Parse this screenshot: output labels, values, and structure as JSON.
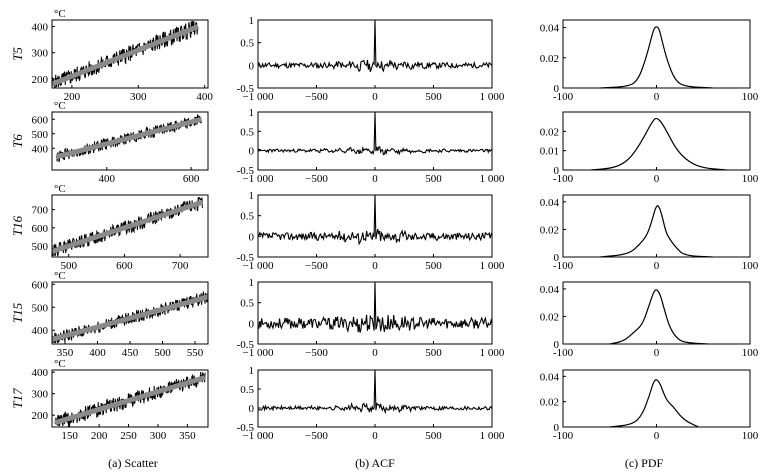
{
  "figure": {
    "unit": "°C",
    "captions": [
      "(a) Scatter",
      "(b) ACF",
      "(c) PDF"
    ]
  },
  "chart_data": [
    {
      "type": "scatter",
      "panel": "a",
      "row": "T5",
      "title": "",
      "xlabel": "",
      "ylabel": "T5",
      "unit": "°C",
      "xlim": [
        170,
        405
      ],
      "ylim": [
        165,
        425
      ],
      "xticks": [
        200,
        300,
        400
      ],
      "yticks": [
        200,
        300,
        400
      ],
      "trend": [
        [
          170,
          180
        ],
        [
          390,
          400
        ]
      ],
      "band": 32
    },
    {
      "type": "line",
      "panel": "b",
      "row": "T5",
      "title": "",
      "xlabel": "",
      "ylabel": "",
      "xlim": [
        -1000,
        1000
      ],
      "ylim": [
        -0.5,
        1
      ],
      "xticks": [
        -1000,
        -500,
        0,
        500,
        1000
      ],
      "xtick_labels": [
        "−1 000",
        "−500",
        "0",
        "500",
        "1 000"
      ],
      "yticks": [
        -0.5,
        0,
        0.5,
        1
      ],
      "peak": {
        "x": 0,
        "y": 1
      },
      "noise_amp": 0.06,
      "seed": 11
    },
    {
      "type": "line",
      "panel": "c",
      "row": "T5",
      "title": "",
      "xlabel": "",
      "ylabel": "",
      "xlim": [
        -100,
        100
      ],
      "ylim": [
        0,
        0.045
      ],
      "xticks": [
        -100,
        0,
        100
      ],
      "yticks": [
        0,
        0.02,
        0.04
      ],
      "ytick_labels": [
        "0",
        "0.02",
        "0.04"
      ],
      "x": [
        -60,
        -30,
        -20,
        -12,
        -6,
        -3,
        0,
        3,
        6,
        12,
        20,
        30,
        60
      ],
      "y": [
        0,
        0.001,
        0.005,
        0.018,
        0.032,
        0.039,
        0.041,
        0.039,
        0.031,
        0.017,
        0.005,
        0.001,
        0
      ]
    },
    {
      "type": "scatter",
      "panel": "a",
      "row": "T6",
      "title": "",
      "xlabel": "",
      "ylabel": "T6",
      "unit": "°C",
      "xlim": [
        270,
        640
      ],
      "ylim": [
        250,
        650
      ],
      "xticks": [
        400,
        600
      ],
      "yticks": [
        400,
        500,
        600
      ],
      "trend": [
        [
          280,
          340
        ],
        [
          625,
          600
        ]
      ],
      "band": 40
    },
    {
      "type": "line",
      "panel": "b",
      "row": "T6",
      "title": "",
      "xlabel": "",
      "ylabel": "",
      "xlim": [
        -1000,
        1000
      ],
      "ylim": [
        -0.5,
        1
      ],
      "xticks": [
        -1000,
        -500,
        0,
        500,
        1000
      ],
      "xtick_labels": [
        "−1 000",
        "−500",
        "0",
        "500",
        "1 000"
      ],
      "yticks": [
        -0.5,
        0,
        0.5,
        1
      ],
      "peak": {
        "x": 0,
        "y": 1
      },
      "noise_amp": 0.04,
      "seed": 23
    },
    {
      "type": "line",
      "panel": "c",
      "row": "T6",
      "title": "",
      "xlabel": "",
      "ylabel": "",
      "xlim": [
        -100,
        100
      ],
      "ylim": [
        0,
        0.03
      ],
      "xticks": [
        -100,
        0,
        100
      ],
      "yticks": [
        0,
        0.01,
        0.02
      ],
      "ytick_labels": [
        "0",
        "0.01",
        "0.02"
      ],
      "x": [
        -70,
        -45,
        -30,
        -18,
        -8,
        -3,
        0,
        5,
        12,
        22,
        35,
        50,
        75
      ],
      "y": [
        0,
        0.001,
        0.005,
        0.013,
        0.022,
        0.026,
        0.027,
        0.025,
        0.019,
        0.01,
        0.004,
        0.001,
        0
      ]
    },
    {
      "type": "scatter",
      "panel": "a",
      "row": "T16",
      "title": "",
      "xlabel": "",
      "ylabel": "T16",
      "unit": "°C",
      "xlim": [
        470,
        750
      ],
      "ylim": [
        440,
        780
      ],
      "xticks": [
        500,
        600,
        700
      ],
      "yticks": [
        500,
        600,
        700
      ],
      "trend": [
        [
          470,
          470
        ],
        [
          740,
          740
        ]
      ],
      "band": 38
    },
    {
      "type": "line",
      "panel": "b",
      "row": "T16",
      "title": "",
      "xlabel": "",
      "ylabel": "",
      "xlim": [
        -1000,
        1000
      ],
      "ylim": [
        -0.5,
        1
      ],
      "xticks": [
        -1000,
        -500,
        0,
        500,
        1000
      ],
      "xtick_labels": [
        "−1 000",
        "−500",
        "0",
        "500",
        "1 000"
      ],
      "yticks": [
        -0.5,
        0,
        0.5,
        1
      ],
      "peak": {
        "x": 0,
        "y": 1
      },
      "noise_amp": 0.09,
      "seed": 37
    },
    {
      "type": "line",
      "panel": "c",
      "row": "T16",
      "title": "",
      "xlabel": "",
      "ylabel": "",
      "xlim": [
        -100,
        100
      ],
      "ylim": [
        0,
        0.045
      ],
      "xticks": [
        -100,
        0,
        100
      ],
      "yticks": [
        0,
        0.02,
        0.04
      ],
      "ytick_labels": [
        "0",
        "0.02",
        "0.04"
      ],
      "x": [
        -60,
        -30,
        -18,
        -10,
        -5,
        -1,
        2,
        6,
        10,
        15,
        22,
        30,
        60
      ],
      "y": [
        0,
        0.002,
        0.009,
        0.016,
        0.026,
        0.036,
        0.038,
        0.03,
        0.018,
        0.012,
        0.006,
        0.001,
        0
      ]
    },
    {
      "type": "scatter",
      "panel": "a",
      "row": "T15",
      "title": "",
      "xlabel": "",
      "ylabel": "T15",
      "unit": "°C",
      "xlim": [
        330,
        570
      ],
      "ylim": [
        340,
        610
      ],
      "xticks": [
        350,
        400,
        450,
        500,
        550
      ],
      "yticks": [
        400,
        500,
        600
      ],
      "trend": [
        [
          330,
          360
        ],
        [
          570,
          545
        ]
      ],
      "band": 28
    },
    {
      "type": "line",
      "panel": "b",
      "row": "T15",
      "title": "",
      "xlabel": "",
      "ylabel": "",
      "xlim": [
        -1000,
        1000
      ],
      "ylim": [
        -0.5,
        1
      ],
      "xticks": [
        -1000,
        -500,
        0,
        500,
        1000
      ],
      "xtick_labels": [
        "−1 000",
        "−500",
        "0",
        "500",
        "1 000"
      ],
      "yticks": [
        -0.5,
        0,
        0.5,
        1
      ],
      "peak": {
        "x": 0,
        "y": 1
      },
      "noise_amp": 0.13,
      "seed": 53
    },
    {
      "type": "line",
      "panel": "c",
      "row": "T15",
      "title": "",
      "xlabel": "",
      "ylabel": "",
      "xlim": [
        -100,
        100
      ],
      "ylim": [
        0,
        0.045
      ],
      "xticks": [
        -100,
        0,
        100
      ],
      "yticks": [
        0,
        0.02,
        0.04
      ],
      "ytick_labels": [
        "0",
        "0.02",
        "0.04"
      ],
      "x": [
        -50,
        -35,
        -25,
        -15,
        -8,
        -3,
        0,
        4,
        8,
        14,
        22,
        30,
        55
      ],
      "y": [
        0,
        0.002,
        0.008,
        0.014,
        0.028,
        0.038,
        0.04,
        0.036,
        0.026,
        0.012,
        0.004,
        0.001,
        0
      ]
    },
    {
      "type": "scatter",
      "panel": "a",
      "row": "T17",
      "title": "",
      "xlabel": "",
      "ylabel": "T17",
      "unit": "°C",
      "xlim": [
        120,
        385
      ],
      "ylim": [
        145,
        410
      ],
      "xticks": [
        150,
        200,
        250,
        300,
        350
      ],
      "yticks": [
        200,
        300,
        400
      ],
      "trend": [
        [
          125,
          165
        ],
        [
          380,
          375
        ]
      ],
      "band": 35
    },
    {
      "type": "line",
      "panel": "b",
      "row": "T17",
      "title": "",
      "xlabel": "",
      "ylabel": "",
      "xlim": [
        -1000,
        1000
      ],
      "ylim": [
        -0.5,
        1
      ],
      "xticks": [
        -1000,
        -500,
        0,
        500,
        1000
      ],
      "xtick_labels": [
        "−1 000",
        "−500",
        "0",
        "500",
        "1 000"
      ],
      "yticks": [
        -0.5,
        0,
        0.5,
        1
      ],
      "peak": {
        "x": 0,
        "y": 1
      },
      "noise_amp": 0.05,
      "seed": 71
    },
    {
      "type": "line",
      "panel": "c",
      "row": "T17",
      "title": "",
      "xlabel": "",
      "ylabel": "",
      "xlim": [
        -100,
        100
      ],
      "ylim": [
        0,
        0.045
      ],
      "xticks": [
        -100,
        0,
        100
      ],
      "yticks": [
        0,
        0.02,
        0.04
      ],
      "ytick_labels": [
        "0",
        "0.02",
        "0.04"
      ],
      "x": [
        -50,
        -25,
        -15,
        -8,
        -3,
        0,
        4,
        8,
        12,
        18,
        25,
        33,
        45
      ],
      "y": [
        0,
        0.002,
        0.01,
        0.024,
        0.036,
        0.038,
        0.034,
        0.026,
        0.02,
        0.016,
        0.009,
        0.004,
        0
      ]
    }
  ]
}
